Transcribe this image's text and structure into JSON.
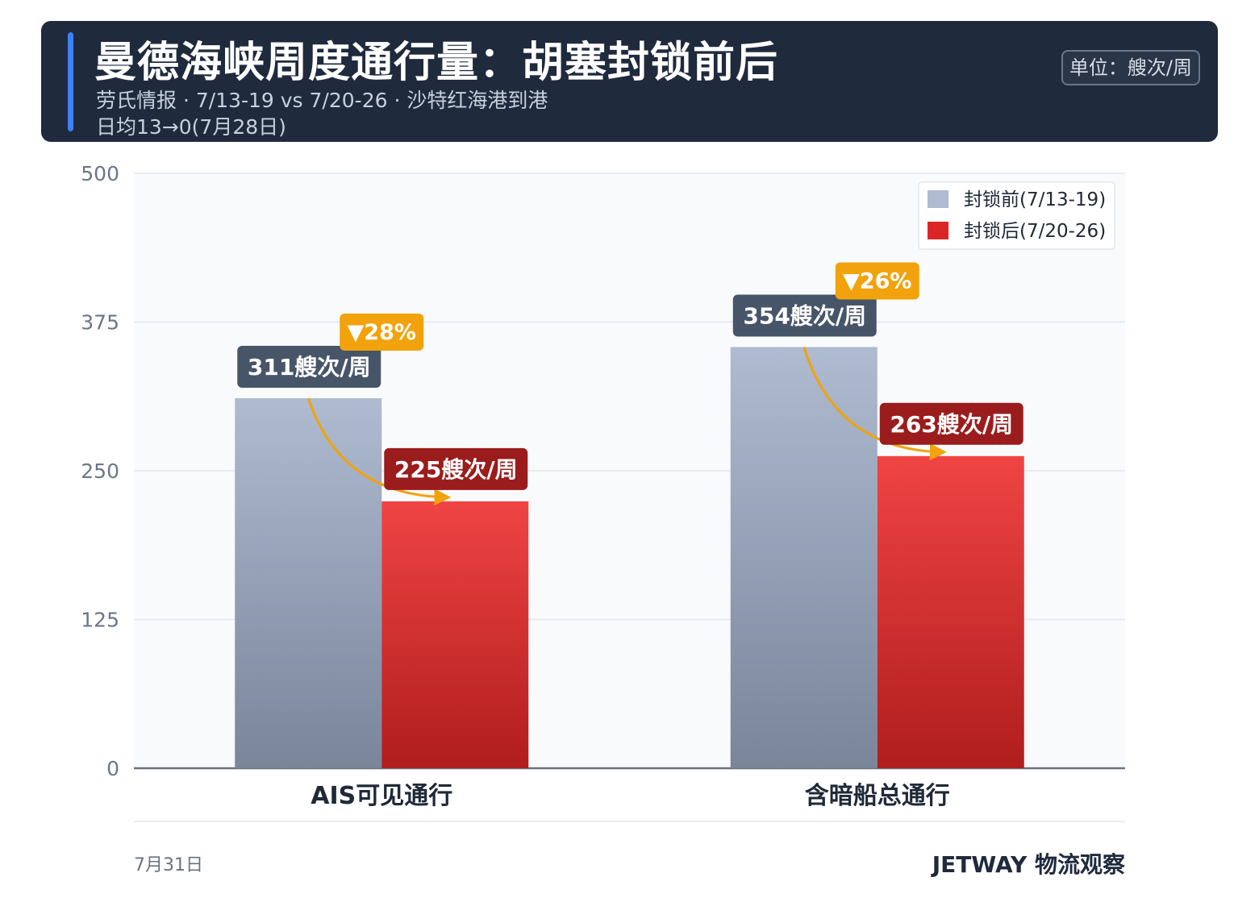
{
  "header": {
    "title": "曼德海峡周度通行量：胡塞封锁前后",
    "subtitle_line1": "劳氏情报 · 7/13-19 vs 7/20-26 · 沙特红海港到港",
    "subtitle_line2": "日均13→0(7月28日)",
    "unit": "单位：艘次/周"
  },
  "footer": {
    "date": "7月31日",
    "brand": "JETWAY 物流观察"
  },
  "colors": {
    "header_bg": "#1f2a3d",
    "accent": "#3b82f6",
    "before_bar_top": "#aebbd0",
    "before_bar_bottom": "#798599",
    "after_bar_top": "#f04444",
    "after_bar_bottom": "#b01d1d",
    "before_label_bg": "#475569",
    "after_label_bg": "#9b1c1c",
    "change_badge_bg": "#f2a20c",
    "arrow": "#f2a20c"
  },
  "chart_data": {
    "type": "bar",
    "categories": [
      "AIS可见通行",
      "含暗船总通行"
    ],
    "series": [
      {
        "name": "封锁前(7/13-19)",
        "values": [
          311,
          354
        ],
        "labels": [
          "311艘次/周",
          "354艘次/周"
        ]
      },
      {
        "name": "封锁后(7/20-26)",
        "values": [
          225,
          263
        ],
        "labels": [
          "225艘次/周",
          "263艘次/周"
        ]
      }
    ],
    "changes": [
      "▼28%",
      "▼26%"
    ],
    "ylim": [
      0,
      500
    ],
    "yticks": [
      0,
      125,
      250,
      375,
      500
    ],
    "grid": true,
    "legend": "top-right"
  }
}
